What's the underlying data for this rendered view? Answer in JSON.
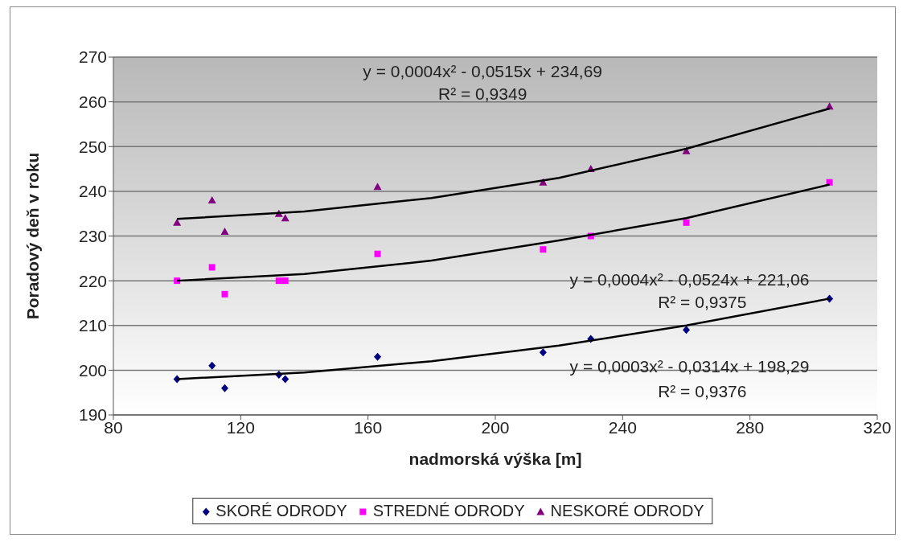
{
  "chart_data": {
    "type": "scatter",
    "xlabel": "nadmorská výška [m]",
    "ylabel": "Poradový deň v roku",
    "x": [
      100,
      111,
      115,
      132,
      134,
      163,
      215,
      230,
      260,
      305
    ],
    "series": [
      {
        "name": "SKORÉ ODRODY",
        "color": "#000080",
        "marker": "diamond",
        "values": [
          198,
          201,
          196,
          199,
          198,
          203,
          204,
          207,
          209,
          216
        ]
      },
      {
        "name": "STREDNÉ ODRODY",
        "color": "#ff00ff",
        "marker": "square",
        "values": [
          220,
          223,
          217,
          220,
          220,
          226,
          227,
          230,
          233,
          242
        ]
      },
      {
        "name": "NESKORÉ ODRODY",
        "color": "#800080",
        "marker": "triangle",
        "values": [
          233,
          238,
          231,
          235,
          234,
          241,
          242,
          245,
          249,
          259
        ]
      },
      {
        "type": "line",
        "color": "#000000",
        "marker": "none",
        "x": [
          100,
          140,
          180,
          220,
          260,
          305
        ],
        "values": [
          198,
          199.5,
          202,
          205.5,
          210,
          216
        ]
      },
      {
        "type": "line",
        "color": "#000000",
        "marker": "none",
        "x": [
          100,
          140,
          180,
          220,
          260,
          305
        ],
        "values": [
          220,
          221.5,
          224.5,
          229,
          234,
          241.5
        ]
      },
      {
        "type": "line",
        "color": "#000000",
        "marker": "none",
        "x": [
          100,
          140,
          180,
          220,
          260,
          305
        ],
        "values": [
          233.8,
          235.5,
          238.5,
          243,
          249.5,
          258.5
        ]
      }
    ],
    "annotations": [
      "y = 0,0004x² - 0,0515x + 234,69",
      "R² = 0,9349",
      "y = 0,0004x² - 0,0524x + 221,06",
      "R² = 0,9375",
      "y = 0,0003x² - 0,0314x + 198,29",
      "R² = 0,9376"
    ],
    "xlim": [
      80,
      320
    ],
    "xticks": [
      80,
      120,
      160,
      200,
      240,
      280,
      320
    ],
    "ylim": [
      190,
      270
    ],
    "yticks": [
      190,
      200,
      210,
      220,
      230,
      240,
      250,
      260,
      270
    ],
    "grid": "y",
    "legend": "bottom"
  }
}
